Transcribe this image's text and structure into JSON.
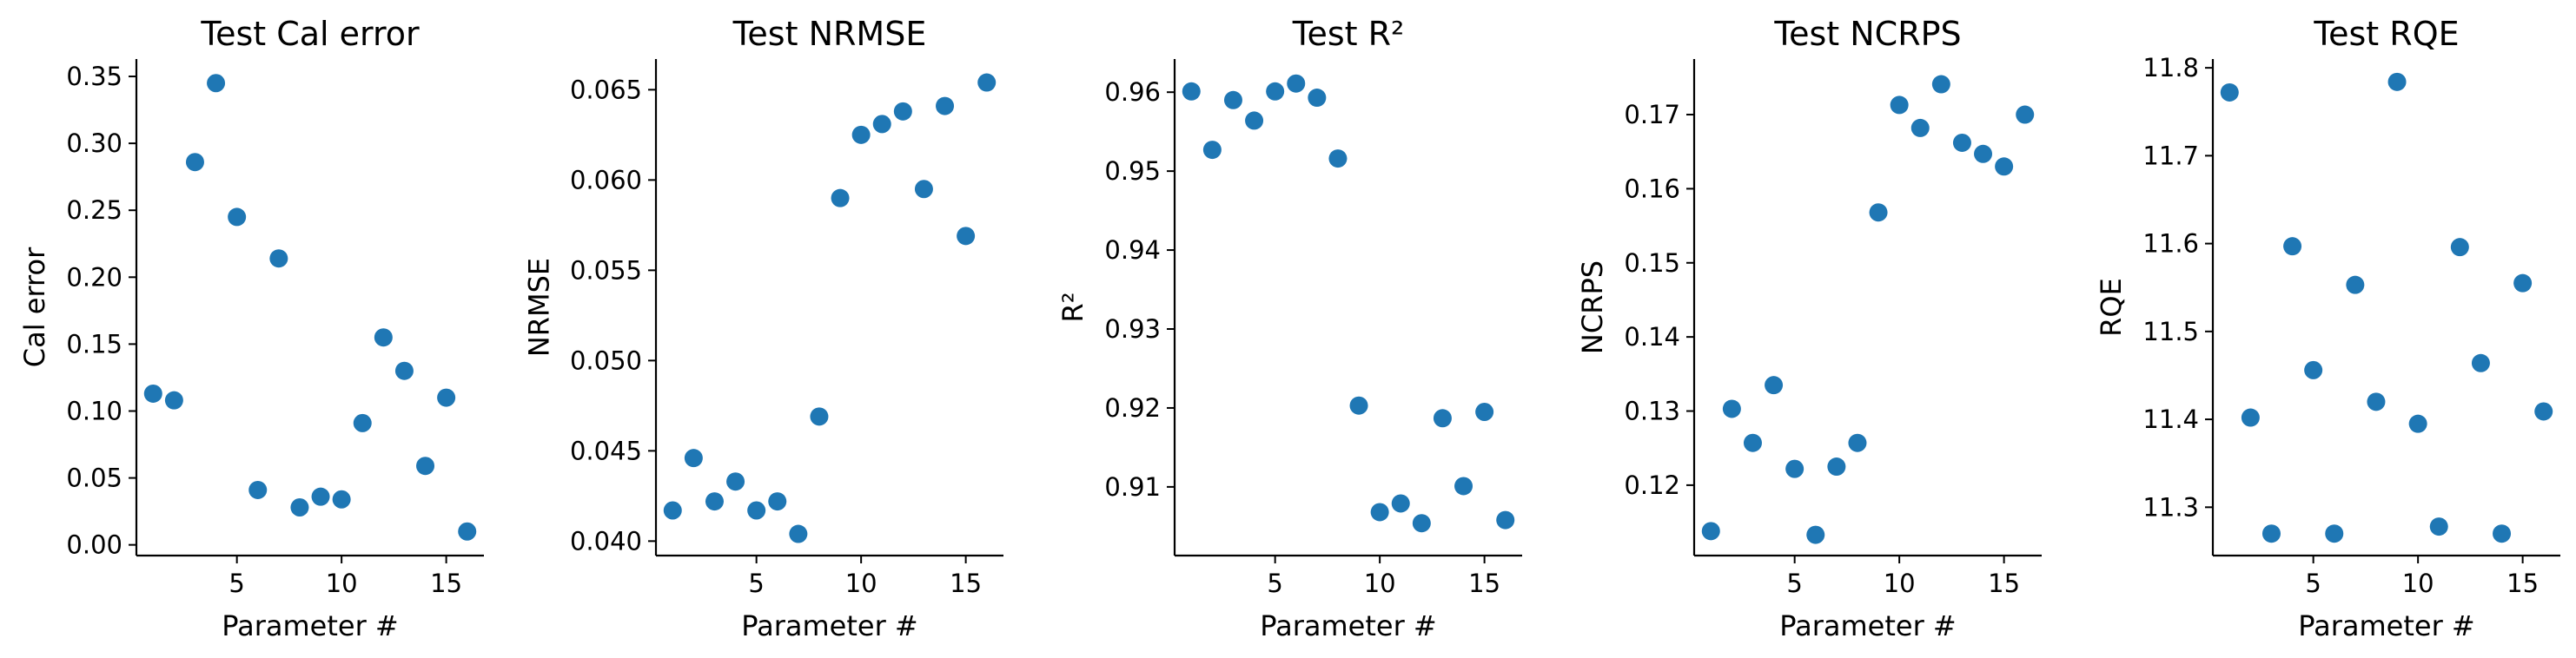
{
  "chart_data": [
    {
      "type": "scatter",
      "title": "Test Cal error",
      "xlabel": "Parameter #",
      "ylabel": "Cal error",
      "color": "#1f77b4",
      "xlim": [
        0.2,
        16.8
      ],
      "ylim": [
        -0.008,
        0.363
      ],
      "xticks": [
        5,
        10,
        15
      ],
      "yticks": [
        "0.00",
        "0.05",
        "0.10",
        "0.15",
        "0.20",
        "0.25",
        "0.30",
        "0.35"
      ],
      "x": [
        1,
        2,
        3,
        4,
        5,
        6,
        7,
        8,
        9,
        10,
        11,
        12,
        13,
        14,
        15,
        16
      ],
      "y": [
        0.113,
        0.108,
        0.286,
        0.345,
        0.245,
        0.041,
        0.214,
        0.028,
        0.036,
        0.034,
        0.091,
        0.155,
        0.13,
        0.059,
        0.11,
        0.01
      ]
    },
    {
      "type": "scatter",
      "title": "Test NRMSE",
      "xlabel": "Parameter #",
      "ylabel": "NRMSE",
      "color": "#1f77b4",
      "xlim": [
        0.2,
        16.8
      ],
      "ylim": [
        0.0392,
        0.0667
      ],
      "xticks": [
        5,
        10,
        15
      ],
      "yticks": [
        "0.040",
        "0.045",
        "0.050",
        "0.055",
        "0.060",
        "0.065"
      ],
      "x": [
        1,
        2,
        3,
        4,
        5,
        6,
        7,
        8,
        9,
        10,
        11,
        12,
        13,
        14,
        15,
        16
      ],
      "y": [
        0.0417,
        0.0446,
        0.0422,
        0.0433,
        0.0417,
        0.0422,
        0.0404,
        0.0469,
        0.059,
        0.0625,
        0.0631,
        0.0638,
        0.0595,
        0.0641,
        0.0569,
        0.0654
      ]
    },
    {
      "type": "scatter",
      "title": "Test R²",
      "xlabel": "Parameter #",
      "ylabel": "R²",
      "color": "#1f77b4",
      "xlim": [
        0.2,
        16.8
      ],
      "ylim": [
        0.9013,
        0.9642
      ],
      "xticks": [
        5,
        10,
        15
      ],
      "yticks": [
        "0.91",
        "0.92",
        "0.93",
        "0.94",
        "0.95",
        "0.96"
      ],
      "x": [
        1,
        2,
        3,
        4,
        5,
        6,
        7,
        8,
        9,
        10,
        11,
        12,
        13,
        14,
        15,
        16
      ],
      "y": [
        0.9601,
        0.9527,
        0.959,
        0.9564,
        0.9601,
        0.9611,
        0.9593,
        0.9516,
        0.9203,
        0.9068,
        0.9079,
        0.9054,
        0.9187,
        0.9101,
        0.9195,
        0.9058
      ]
    },
    {
      "type": "scatter",
      "title": "Test NCRPS",
      "xlabel": "Parameter #",
      "ylabel": "NCRPS",
      "color": "#1f77b4",
      "xlim": [
        0.2,
        16.8
      ],
      "ylim": [
        0.1105,
        0.1775
      ],
      "xticks": [
        5,
        10,
        15
      ],
      "yticks": [
        "0.12",
        "0.13",
        "0.14",
        "0.15",
        "0.16",
        "0.17"
      ],
      "x": [
        1,
        2,
        3,
        4,
        5,
        6,
        7,
        8,
        9,
        10,
        11,
        12,
        13,
        14,
        15,
        16
      ],
      "y": [
        0.1138,
        0.1303,
        0.1257,
        0.1335,
        0.1222,
        0.1133,
        0.1225,
        0.1257,
        0.1568,
        0.1713,
        0.1682,
        0.1741,
        0.1662,
        0.1647,
        0.163,
        0.17
      ]
    },
    {
      "type": "scatter",
      "title": "Test RQE",
      "xlabel": "Parameter #",
      "ylabel": "RQE",
      "color": "#1f77b4",
      "xlim": [
        0.2,
        16.8
      ],
      "ylim": [
        11.245,
        11.81
      ],
      "xticks": [
        5,
        10,
        15
      ],
      "yticks": [
        "11.3",
        "11.4",
        "11.5",
        "11.6",
        "11.7",
        "11.8"
      ],
      "x": [
        1,
        2,
        3,
        4,
        5,
        6,
        7,
        8,
        9,
        10,
        11,
        12,
        13,
        14,
        15,
        16
      ],
      "y": [
        11.772,
        11.402,
        11.27,
        11.597,
        11.456,
        11.27,
        11.553,
        11.42,
        11.784,
        11.395,
        11.278,
        11.596,
        11.464,
        11.27,
        11.555,
        11.409
      ]
    }
  ]
}
